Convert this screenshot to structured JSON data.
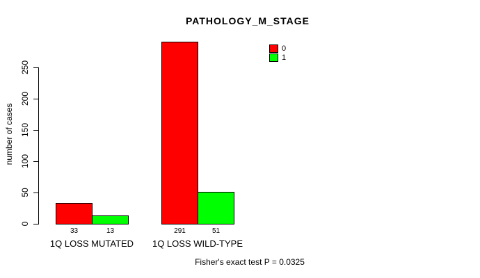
{
  "title": "PATHOLOGY_M_STAGE",
  "footer": {
    "text": "Fisher's exact test P = 0.0325"
  },
  "chart_data": {
    "type": "bar",
    "title": "PATHOLOGY_M_STAGE",
    "xlabel": "",
    "ylabel": "number of cases",
    "categories": [
      "1Q LOSS MUTATED",
      "1Q LOSS WILD-TYPE"
    ],
    "series": [
      {
        "name": "0",
        "color": "#ff0000",
        "values": [
          33,
          291
        ]
      },
      {
        "name": "1",
        "color": "#00ff00",
        "values": [
          13,
          51
        ]
      }
    ],
    "bar_value_labels": [
      [
        33,
        13
      ],
      [
        291,
        51
      ]
    ],
    "yticks": [
      0,
      50,
      100,
      150,
      200,
      250
    ],
    "ylim": [
      0,
      291
    ],
    "grid": false,
    "legend_position": "top-right",
    "annotation": "Fisher's exact test P = 0.0325",
    "axis_color": "#000000",
    "bar_border_color": "#000000",
    "background_color": "#ffffff"
  }
}
